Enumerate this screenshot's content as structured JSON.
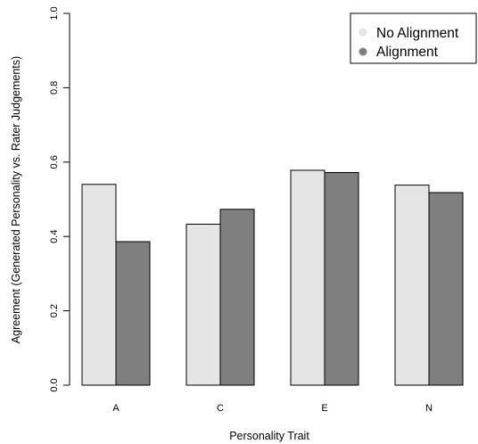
{
  "chart_data": {
    "type": "bar",
    "title": "",
    "xlabel": "Personality Trait",
    "ylabel": "Agreement (Generated Personality vs. Rater Judgements)",
    "categories": [
      "A",
      "C",
      "E",
      "N"
    ],
    "series": [
      {
        "name": "No Alignment",
        "values": [
          0.54,
          0.433,
          0.578,
          0.538
        ],
        "color": "#e5e5e5"
      },
      {
        "name": "Alignment",
        "values": [
          0.386,
          0.473,
          0.572,
          0.518
        ],
        "color": "#7f7f7f"
      }
    ],
    "ylim": [
      0.0,
      1.0
    ],
    "yticks": [
      "0.0",
      "0.2",
      "0.4",
      "0.6",
      "0.8",
      "1.0"
    ],
    "grid": false,
    "legend_position": "top-right"
  }
}
